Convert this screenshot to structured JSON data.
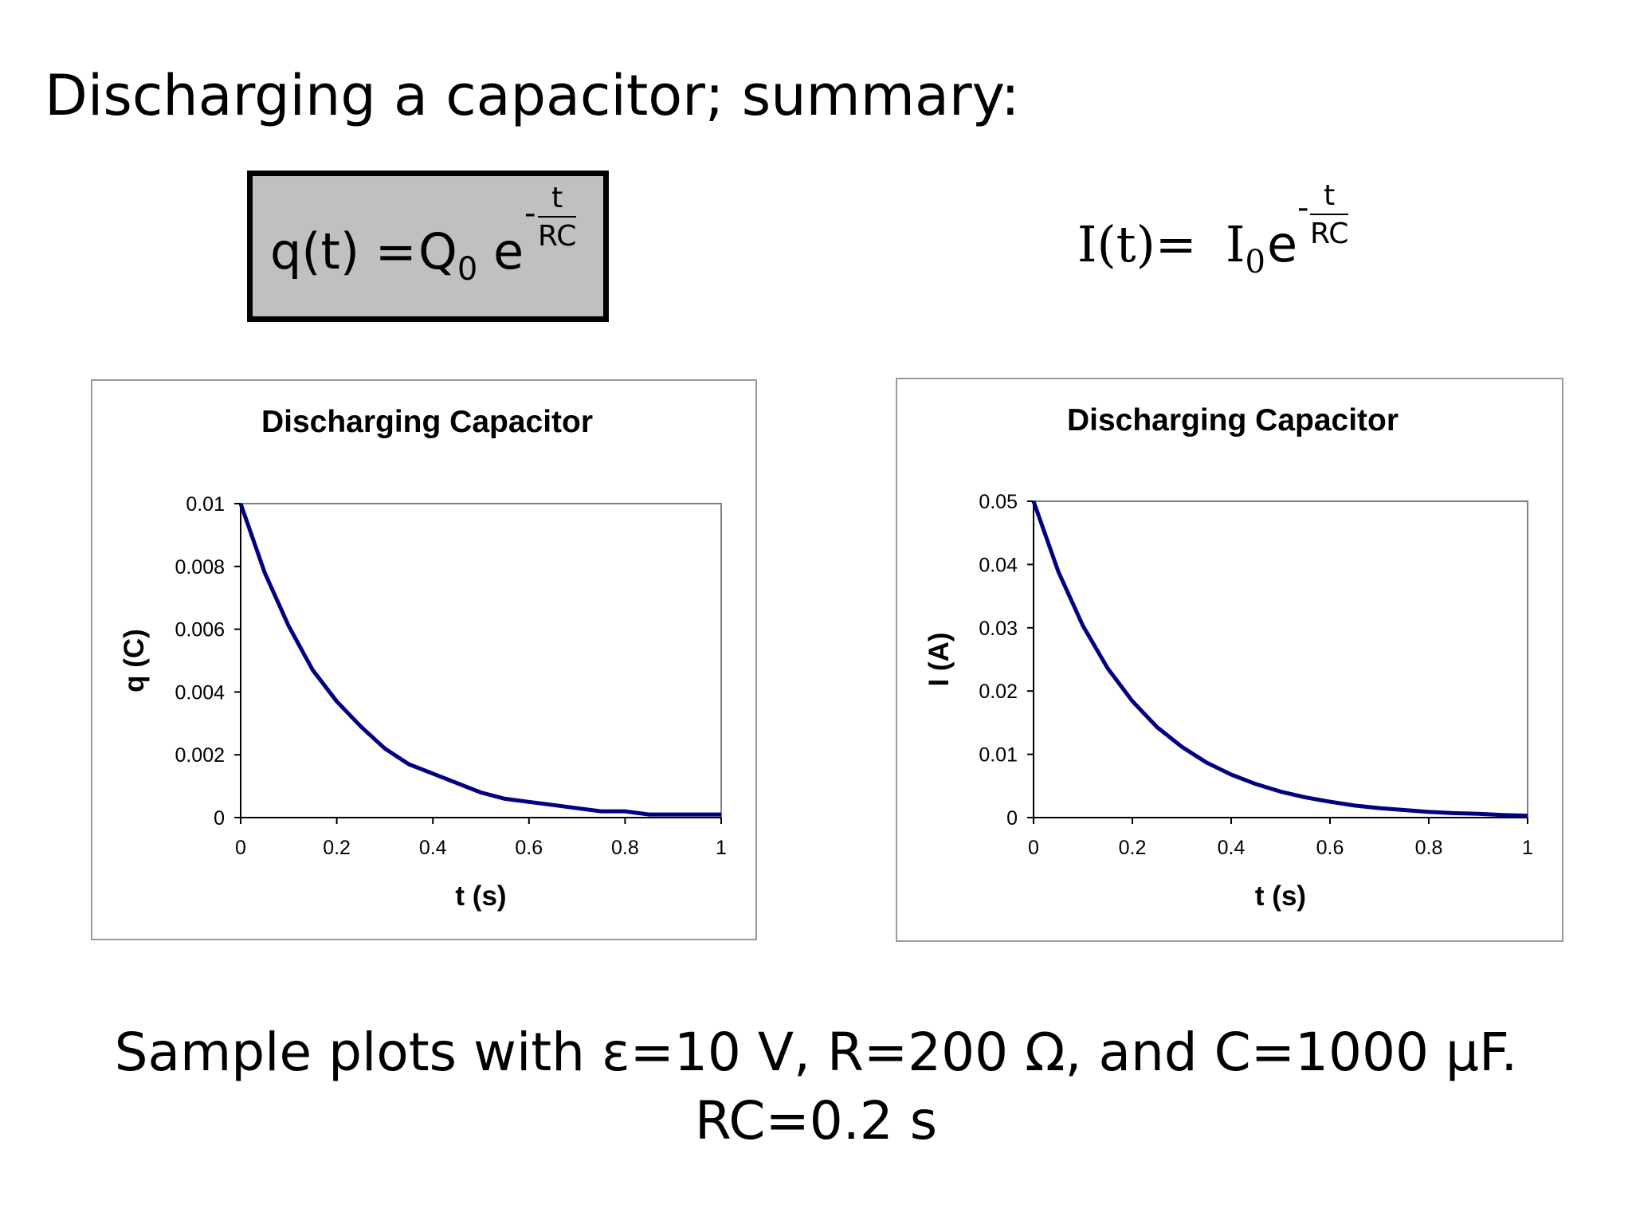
{
  "slide": {
    "title": "Discharging a capacitor; summary:",
    "caption_line1": "Sample plots with ε=10 V, R=200 Ω, and C=1000 μF.",
    "caption_line2": "RC=0.2 s"
  },
  "equations": {
    "charge": {
      "lhs": "q(t) =",
      "coef": "Q",
      "coef_sub": "0",
      "base": "e",
      "exp_sign": "-",
      "exp_num": "t",
      "exp_den": "RC"
    },
    "current": {
      "lhs": "I(t)=",
      "coef": "I",
      "coef_sub": "0",
      "base": "e",
      "exp_sign": "-",
      "exp_num": "t",
      "exp_den": "RC"
    }
  },
  "colors": {
    "curve": "#000080",
    "box_fill": "#c0c0c0"
  },
  "chart_data": [
    {
      "type": "line",
      "title": "Discharging Capacitor",
      "xlabel": "t (s)",
      "ylabel": "q (C)",
      "xlim": [
        0,
        1
      ],
      "ylim": [
        0,
        0.01
      ],
      "xticks": [
        "0",
        "0.2",
        "0.4",
        "0.6",
        "0.8",
        "1"
      ],
      "yticks": [
        "0",
        "0.002",
        "0.004",
        "0.006",
        "0.008",
        "0.01"
      ],
      "grid": false,
      "series": [
        {
          "x": [
            0,
            0.05,
            0.1,
            0.15,
            0.2,
            0.25,
            0.3,
            0.35,
            0.4,
            0.45,
            0.5,
            0.55,
            0.6,
            0.65,
            0.7,
            0.75,
            0.8,
            0.85,
            0.9,
            0.95,
            1.0
          ],
          "y": [
            0.01,
            0.0078,
            0.0061,
            0.0047,
            0.0037,
            0.0029,
            0.0022,
            0.0017,
            0.0014,
            0.0011,
            0.0008,
            0.0006,
            0.0005,
            0.0004,
            0.0003,
            0.0002,
            0.0002,
            0.0001,
            0.0001,
            0.0001,
            0.0001
          ]
        }
      ]
    },
    {
      "type": "line",
      "title": "Discharging Capacitor",
      "xlabel": "t (s)",
      "ylabel": "I (A)",
      "xlim": [
        0,
        1
      ],
      "ylim": [
        0,
        0.05
      ],
      "xticks": [
        "0",
        "0.2",
        "0.4",
        "0.6",
        "0.8",
        "1"
      ],
      "yticks": [
        "0",
        "0.01",
        "0.02",
        "0.03",
        "0.04",
        "0.05"
      ],
      "grid": false,
      "series": [
        {
          "x": [
            0,
            0.05,
            0.1,
            0.15,
            0.2,
            0.25,
            0.3,
            0.35,
            0.4,
            0.45,
            0.5,
            0.55,
            0.6,
            0.65,
            0.7,
            0.75,
            0.8,
            0.85,
            0.9,
            0.95,
            1.0
          ],
          "y": [
            0.05,
            0.0389,
            0.0303,
            0.0236,
            0.0184,
            0.0143,
            0.0112,
            0.0087,
            0.0068,
            0.0053,
            0.0041,
            0.0032,
            0.0025,
            0.0019,
            0.0015,
            0.0012,
            0.0009,
            0.0007,
            0.0006,
            0.0004,
            0.0003
          ]
        }
      ]
    }
  ]
}
